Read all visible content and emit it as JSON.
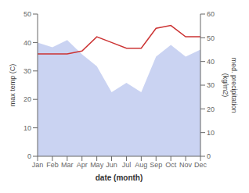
{
  "chart_data": {
    "type": "line",
    "categories": [
      "Jan",
      "Feb",
      "Mar",
      "Apr",
      "May",
      "Jun",
      "Jul",
      "Aug",
      "Sep",
      "Oct",
      "Nov",
      "Dec"
    ],
    "xlabel": "date (month)",
    "ylabel": "max temp (C)",
    "y2label": "med. precipitation\n(kg/m2)",
    "ylim": [
      0,
      50
    ],
    "yticks": [
      0,
      10,
      20,
      30,
      40,
      50
    ],
    "y2lim": [
      0,
      60
    ],
    "y2ticks": [
      0,
      10,
      20,
      30,
      40,
      50,
      60
    ],
    "series": [
      {
        "type": "area",
        "axis": "y2",
        "color": "#b8c4ee",
        "values": [
          48,
          46,
          49,
          43,
          38,
          27,
          31,
          27,
          42,
          47,
          42,
          45
        ]
      },
      {
        "type": "line",
        "axis": "y",
        "color": "#cc3333",
        "values": [
          36,
          36,
          36,
          37,
          42,
          40,
          38,
          38,
          45,
          46,
          42,
          42
        ]
      }
    ]
  }
}
